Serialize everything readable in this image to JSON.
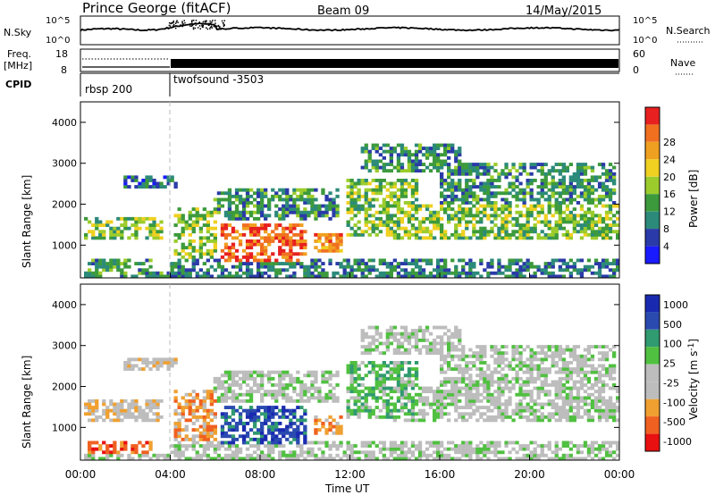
{
  "header": {
    "title": "Prince George (fitACF)",
    "beam": "Beam 09",
    "date": "14/May/2015"
  },
  "strips": {
    "nsky_label": "N.Sky",
    "nsky_ticks": [
      "10^5",
      "10^0"
    ],
    "nsearch_label": "N.Search",
    "nsearch_ticks": [
      "10^5",
      "10^0"
    ],
    "freq_label_1": "Freq.",
    "freq_label_2": "[MHz]",
    "freq_ticks": [
      "18",
      "8"
    ],
    "nave_label": "Nave",
    "nave_ticks": [
      "60",
      "0"
    ],
    "cpid_label": "CPID",
    "cpid_segments": [
      {
        "label": "rbsp 200",
        "start_hour": 0,
        "end_hour": 4
      },
      {
        "label": "twofsound -3503",
        "start_hour": 4,
        "end_hour": 24
      }
    ]
  },
  "colors": {
    "power": [
      "#1a1aff",
      "#2a3aa8",
      "#2c8a7a",
      "#3c9a3c",
      "#9ccc2c",
      "#f0d020",
      "#f0a020",
      "#f07020",
      "#e82020"
    ],
    "velocity": [
      "#e81010",
      "#f06020",
      "#f0a030",
      "#bdbdbd",
      "#bdbdbd",
      "#50c040",
      "#309a70",
      "#2a4ab0",
      "#1a2ab0"
    ]
  },
  "chart_data": [
    {
      "type": "heatmap",
      "xlabel": "",
      "ylabel": "Slant Range [km]",
      "xlim": [
        0,
        24
      ],
      "ylim": [
        200,
        4500
      ],
      "y_ticks": [
        1000,
        2000,
        3000,
        4000
      ],
      "colorbar_label": "Power [dB]",
      "colorbar_ticks": [
        "4",
        "8",
        "12",
        "16",
        "20",
        "24",
        "28"
      ],
      "colorbar_range": [
        0,
        30
      ]
    },
    {
      "type": "heatmap",
      "xlabel": "Time UT",
      "ylabel": "Slant Range [km]",
      "xlim": [
        0,
        24
      ],
      "ylim": [
        200,
        4500
      ],
      "x_ticks": [
        "00:00",
        "04:00",
        "08:00",
        "12:00",
        "16:00",
        "20:00",
        "00:00"
      ],
      "y_ticks": [
        1000,
        2000,
        3000,
        4000
      ],
      "colorbar_label": "Velocity [m s^-1]",
      "colorbar_ticks": [
        "1000",
        "500",
        "100",
        "25",
        "-25",
        "-100",
        "-500",
        "-1000"
      ]
    }
  ]
}
